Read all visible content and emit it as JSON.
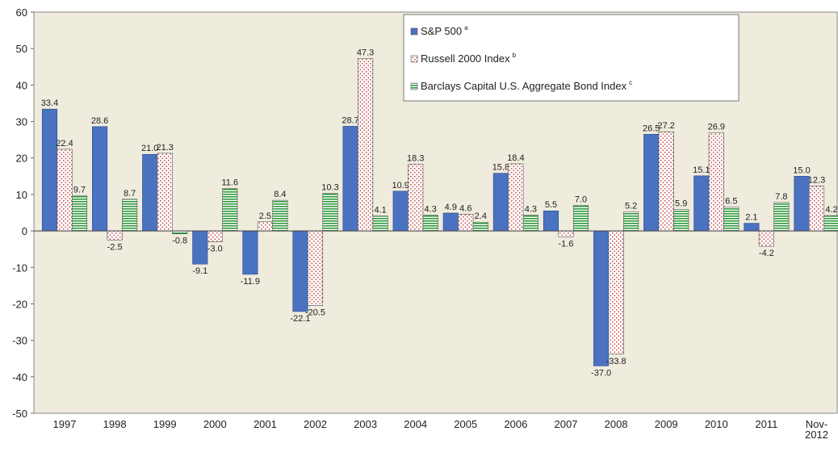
{
  "chart_data": {
    "type": "bar",
    "categories": [
      "1997",
      "1998",
      "1999",
      "2000",
      "2001",
      "2002",
      "2003",
      "2004",
      "2005",
      "2006",
      "2007",
      "2008",
      "2009",
      "2010",
      "2011",
      "Nov-2012"
    ],
    "series": [
      {
        "name": "S&P 500",
        "note": "a",
        "color": "#4a72c0",
        "pattern": "solid",
        "values": [
          33.4,
          28.6,
          21.0,
          -9.1,
          -11.9,
          -22.1,
          28.7,
          10.9,
          4.9,
          15.8,
          5.5,
          -37.0,
          26.5,
          15.1,
          2.1,
          15.0
        ],
        "value_labels": [
          "33.4",
          "28.6",
          "21.0",
          "-9.1",
          "-11.9",
          "-22.1",
          "28.7",
          "10.9",
          "4.9",
          "15.8",
          "5.5",
          "-37.0",
          "26.5",
          "15.1",
          "2.1",
          "15.0"
        ]
      },
      {
        "name": "Russell 2000 Index",
        "note": "b",
        "color": "#c0504d",
        "pattern": "dots",
        "values": [
          22.4,
          -2.5,
          21.3,
          -3.0,
          2.5,
          -20.5,
          47.3,
          18.3,
          4.6,
          18.4,
          -1.6,
          -33.8,
          27.2,
          26.9,
          -4.2,
          12.3
        ],
        "value_labels": [
          "22.4",
          "-2.5",
          "21.3",
          "-3.0",
          "2.5",
          "-20.5",
          "47.3",
          "18.3",
          "4.6",
          "18.4",
          "-1.6",
          "-33.8",
          "27.2",
          "26.9",
          "-4.2",
          "12.3"
        ]
      },
      {
        "name": "Barclays Capital U.S. Aggregate Bond Index",
        "note": "c",
        "color": "#2e9a3c",
        "pattern": "stripes",
        "values": [
          9.7,
          8.7,
          -0.8,
          11.6,
          8.4,
          10.3,
          4.1,
          4.3,
          2.4,
          4.3,
          7.0,
          5.2,
          5.9,
          6.5,
          7.8,
          4.2
        ],
        "value_labels": [
          "9.7",
          "8.7",
          "-0.8",
          "11.6",
          "8.4",
          "10.3",
          "4.1",
          "4.3",
          "2.4",
          "4.3",
          "7.0",
          "5.2",
          "5.9",
          "6.5",
          "7.8",
          "4.2"
        ]
      }
    ],
    "ylim": [
      -50,
      60
    ],
    "yticks": [
      -50,
      -40,
      -30,
      -20,
      -10,
      0,
      10,
      20,
      30,
      40,
      50,
      60
    ],
    "grid": false,
    "legend": "top"
  }
}
